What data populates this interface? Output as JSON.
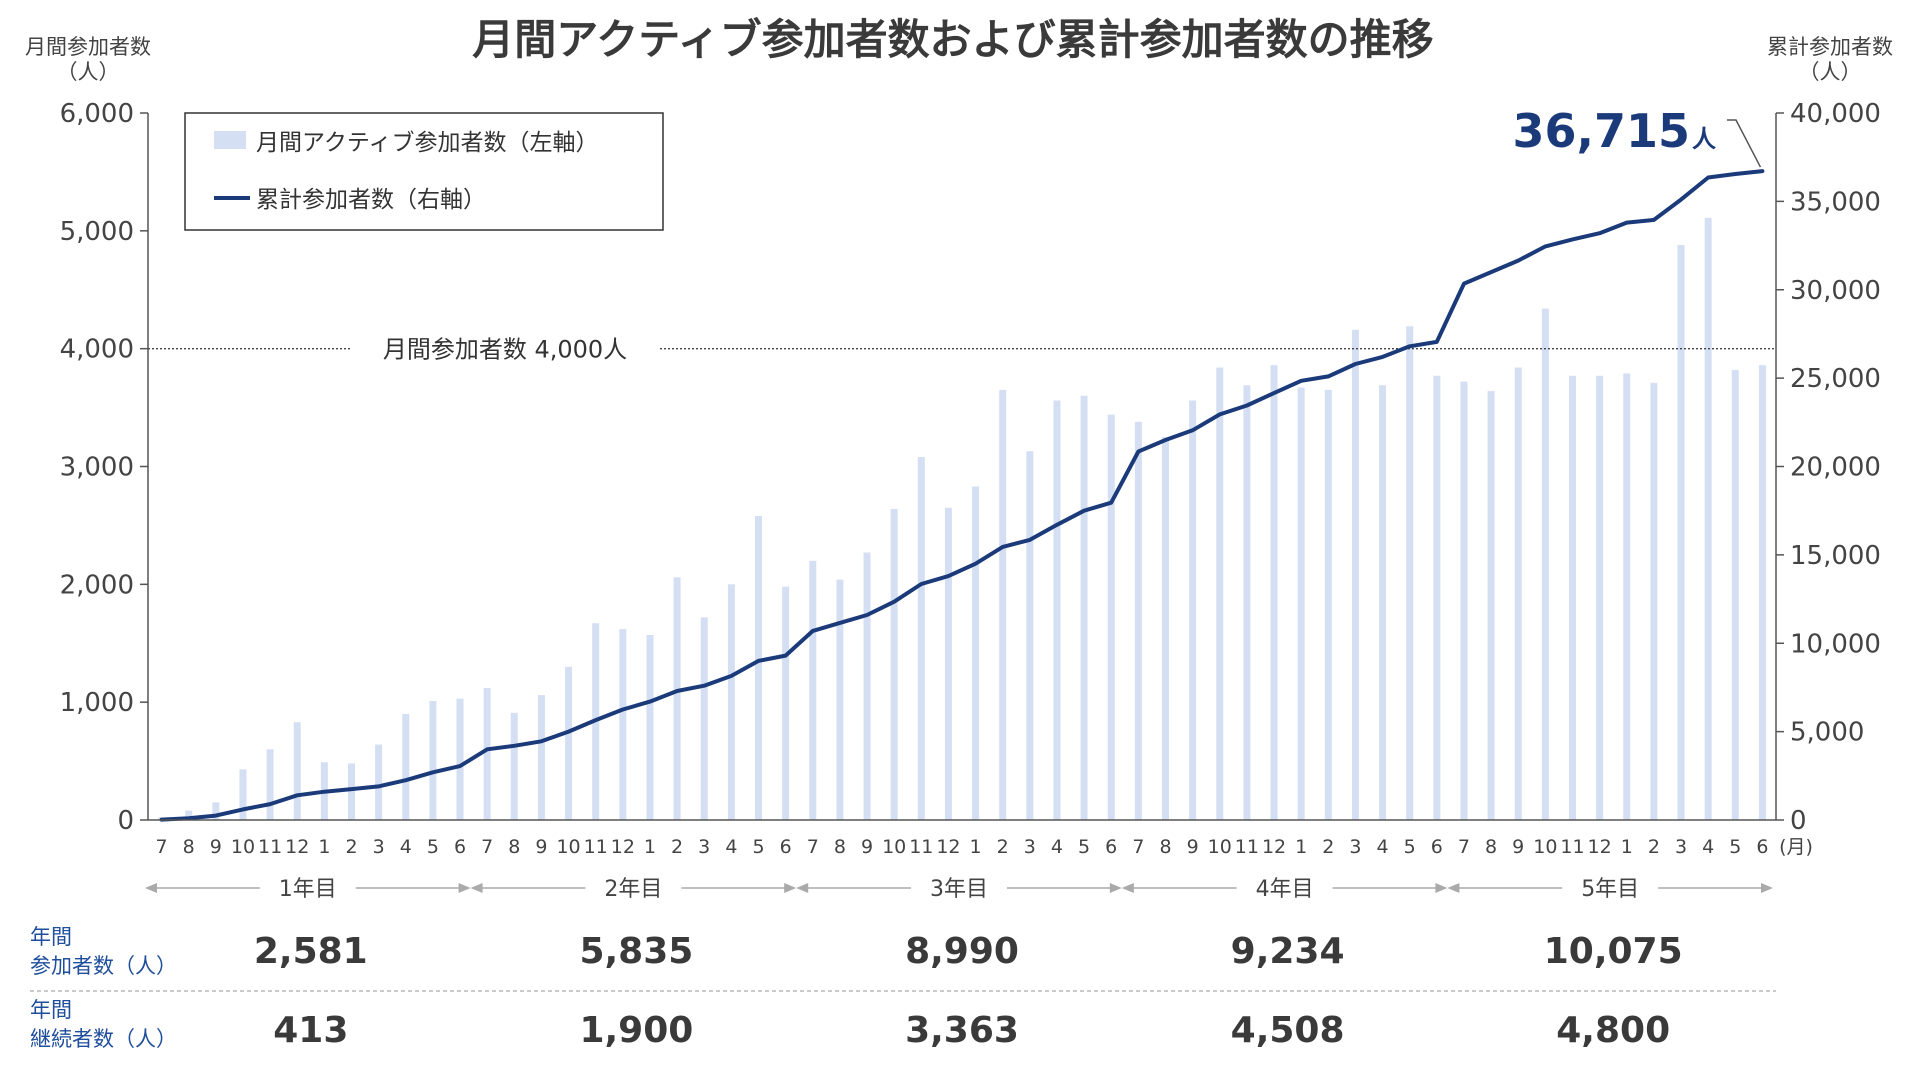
{
  "chart_data": {
    "type": "bar+line",
    "title": "月間アクティブ参加者数および累計参加者数の推移",
    "y_left_label": [
      "月間参加者数",
      "（人）"
    ],
    "y_right_label": [
      "累計参加者数",
      "（人）"
    ],
    "y_left_ticks": [
      "6,000",
      "5,000",
      "4,000",
      "3,000",
      "2,000",
      "1,000",
      "0"
    ],
    "y_left_range": [
      0,
      6000
    ],
    "y_right_ticks": [
      "40,000",
      "35,000",
      "30,000",
      "25,000",
      "20,000",
      "15,000",
      "10,000",
      "5,000",
      "0"
    ],
    "y_right_range": [
      0,
      40000
    ],
    "x_unit": "(月)",
    "categories": [
      "7",
      "8",
      "9",
      "10",
      "11",
      "12",
      "1",
      "2",
      "3",
      "4",
      "5",
      "6",
      "7",
      "8",
      "9",
      "10",
      "11",
      "12",
      "1",
      "2",
      "3",
      "4",
      "5",
      "6",
      "7",
      "8",
      "9",
      "10",
      "11",
      "12",
      "1",
      "2",
      "3",
      "4",
      "5",
      "6",
      "7",
      "8",
      "9",
      "10",
      "11",
      "12",
      "1",
      "2",
      "3",
      "4",
      "5",
      "6",
      "7",
      "8",
      "9",
      "10",
      "11",
      "12",
      "1",
      "2",
      "3",
      "4",
      "5",
      "6"
    ],
    "series": [
      {
        "name": "月間アクティブ参加者数（左軸）",
        "type": "bar",
        "axis": "left",
        "color": "#d4dff3",
        "values": [
          20,
          80,
          150,
          430,
          600,
          830,
          490,
          480,
          640,
          900,
          1010,
          1030,
          1120,
          910,
          1060,
          1300,
          1670,
          1620,
          1570,
          2060,
          1720,
          2000,
          2580,
          1980,
          2200,
          2040,
          2270,
          2640,
          3080,
          2650,
          2830,
          3650,
          3130,
          3560,
          3600,
          3440,
          3380,
          3250,
          3560,
          3840,
          3690,
          3860,
          3670,
          3650,
          4160,
          3690,
          4190,
          3770,
          3720,
          3640,
          3840,
          4340,
          3770,
          3770,
          3790,
          3710,
          4880,
          5110,
          3820,
          3860
        ]
      },
      {
        "name": "累計参加者数（右軸）",
        "type": "line",
        "axis": "right",
        "color": "#1b3a7a",
        "values": [
          20,
          100,
          250,
          600,
          900,
          1400,
          1600,
          1750,
          1900,
          2250,
          2700,
          3050,
          4000,
          4200,
          4450,
          5000,
          5650,
          6250,
          6700,
          7300,
          7600,
          8150,
          9000,
          9300,
          10700,
          11150,
          11600,
          12350,
          13350,
          13800,
          14500,
          15450,
          15850,
          16700,
          17500,
          17950,
          20850,
          21500,
          22050,
          22950,
          23450,
          24150,
          24850,
          25100,
          25800,
          26200,
          26800,
          27050,
          30350,
          31000,
          31650,
          32450,
          32850,
          33200,
          33800,
          33950,
          35100,
          36350,
          36550,
          36715
        ]
      }
    ],
    "reference_line": {
      "value": 4000,
      "axis": "left",
      "label": "月間参加者数 4,000人"
    },
    "total_annotation": {
      "value": "36,715",
      "unit": "人"
    },
    "year_groups": [
      {
        "label": "1年目",
        "participants": "2,581",
        "continuing": "413"
      },
      {
        "label": "2年目",
        "participants": "5,835",
        "continuing": "1,900"
      },
      {
        "label": "3年目",
        "participants": "8,990",
        "continuing": "3,363"
      },
      {
        "label": "4年目",
        "participants": "9,234",
        "continuing": "4,508"
      },
      {
        "label": "5年目",
        "participants": "10,075",
        "continuing": "4,800"
      }
    ],
    "row_labels": {
      "participants": [
        "年間",
        "参加者数（人）"
      ],
      "continuing": [
        "年間",
        "継続者数（人）"
      ]
    },
    "legend_placement": "top-left"
  }
}
